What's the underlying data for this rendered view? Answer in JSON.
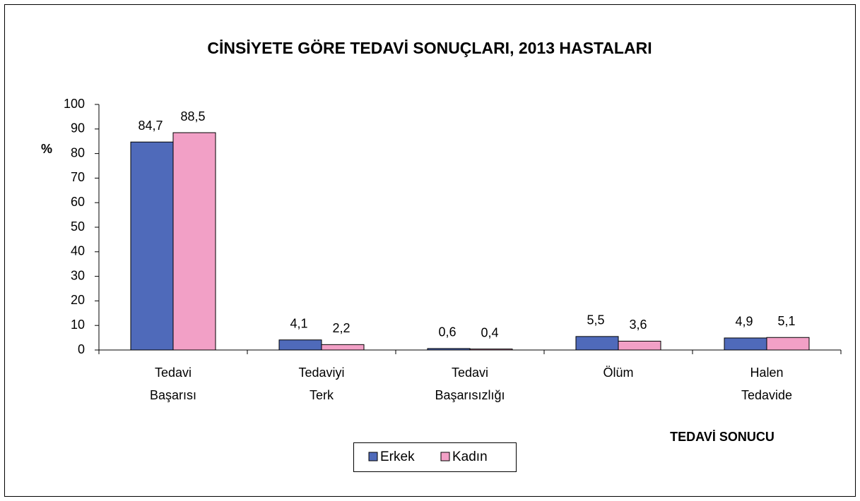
{
  "chart_data": {
    "type": "bar",
    "title": "CİNSİYETE GÖRE TEDAVİ SONUÇLARI, 2013 HASTALARI",
    "y_label": "%",
    "x_label": "TEDAVİ SONUCU",
    "categories": [
      [
        "Tedavi",
        "Başarısı"
      ],
      [
        "Tedaviyi",
        "Terk"
      ],
      [
        "Tedavi",
        "Başarısızlığı"
      ],
      [
        "Ölüm"
      ],
      [
        "Halen",
        "Tedavide"
      ]
    ],
    "series": [
      {
        "name": "Erkek",
        "color": "#4f6aba",
        "values": [
          84.7,
          4.1,
          0.6,
          5.5,
          4.9
        ],
        "value_labels": [
          "84,7",
          "4,1",
          "0,6",
          "5,5",
          "4,9"
        ]
      },
      {
        "name": "Kadın",
        "color": "#f2a0c6",
        "values": [
          88.5,
          2.2,
          0.4,
          3.6,
          5.1
        ],
        "value_labels": [
          "88,5",
          "2,2",
          "0,4",
          "3,6",
          "5,1"
        ]
      }
    ],
    "ylim": [
      0,
      100
    ],
    "yticks": [
      0,
      10,
      20,
      30,
      40,
      50,
      60,
      70,
      80,
      90,
      100
    ],
    "grid": false
  }
}
